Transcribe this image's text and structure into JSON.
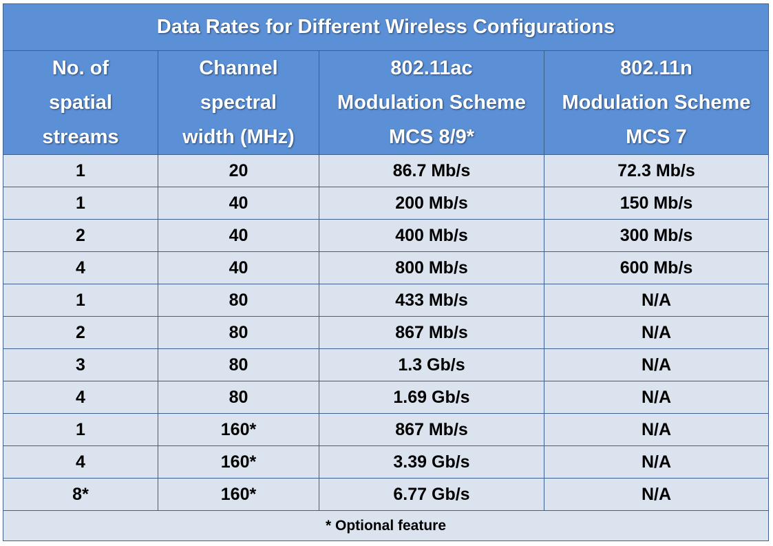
{
  "title": "Data Rates for Different Wireless Configurations",
  "columns": [
    {
      "lines": [
        "No. of",
        "spatial",
        "streams"
      ]
    },
    {
      "lines": [
        "Channel",
        "spectral",
        "width (MHz)"
      ]
    },
    {
      "lines": [
        "802.11ac",
        "Modulation Scheme",
        "MCS 8/9*"
      ]
    },
    {
      "lines": [
        "802.11n",
        "Modulation Scheme",
        "MCS 7"
      ]
    }
  ],
  "rows": [
    [
      "1",
      "20",
      "86.7 Mb/s",
      "72.3 Mb/s"
    ],
    [
      "1",
      "40",
      "200 Mb/s",
      "150 Mb/s"
    ],
    [
      "2",
      "40",
      "400 Mb/s",
      "300 Mb/s"
    ],
    [
      "4",
      "40",
      "800 Mb/s",
      "600 Mb/s"
    ],
    [
      "1",
      "80",
      "433 Mb/s",
      "N/A"
    ],
    [
      "2",
      "80",
      "867 Mb/s",
      "N/A"
    ],
    [
      "3",
      "80",
      "1.3 Gb/s",
      "N/A"
    ],
    [
      "4",
      "80",
      "1.69 Gb/s",
      "N/A"
    ],
    [
      "1",
      "160*",
      "867 Mb/s",
      "N/A"
    ],
    [
      "4",
      "160*",
      "3.39 Gb/s",
      "N/A"
    ],
    [
      "8*",
      "160*",
      "6.77 Gb/s",
      "N/A"
    ]
  ],
  "footnote": "* Optional feature",
  "colors": {
    "header_bg": "#5b8fd6",
    "header_text": "#ffffff",
    "row_bg": "#dbe3ef",
    "border": "#3d5f8c"
  }
}
